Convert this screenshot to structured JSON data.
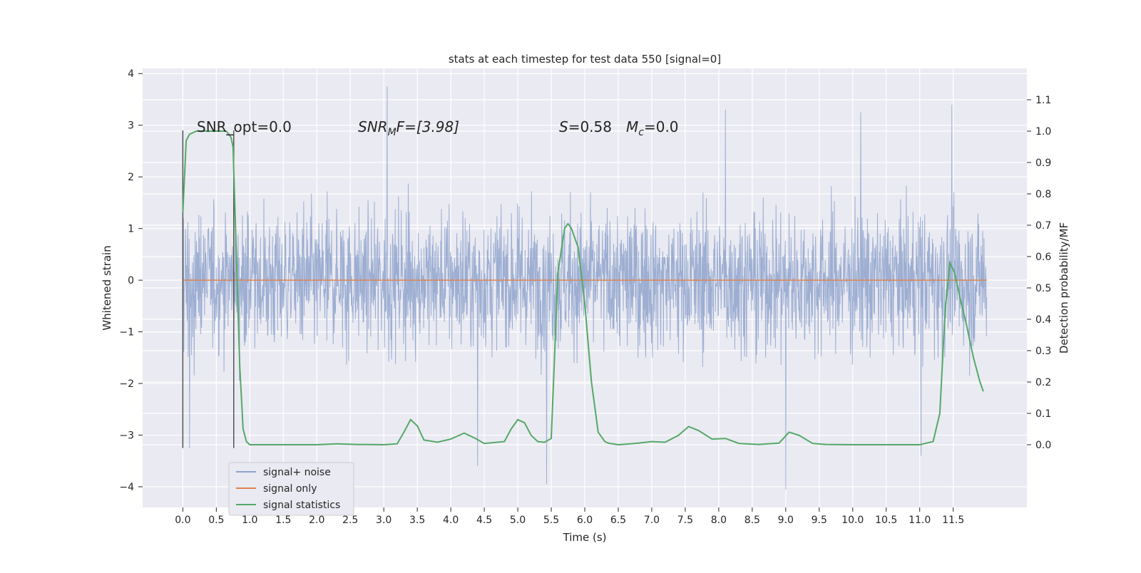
{
  "chart_data": {
    "type": "line",
    "title": "stats at each timestep for test data 550 [signal=0]",
    "xlabel": "Time (s)",
    "ylabel_left": "Whitened strain",
    "ylabel_right": "Detection probability/MF",
    "xlim": [
      -0.6,
      12.6
    ],
    "ylim_left": [
      -4.4,
      4.1
    ],
    "ylim_right": [
      -0.2,
      1.2
    ],
    "x_ticks": [
      "0.0",
      "0.5",
      "1.0",
      "1.5",
      "2.0",
      "2.5",
      "3.0",
      "3.5",
      "4.0",
      "4.5",
      "5.0",
      "5.5",
      "6.0",
      "6.5",
      "7.0",
      "7.5",
      "8.0",
      "8.5",
      "9.0",
      "9.5",
      "10.0",
      "10.5",
      "11.0",
      "11.5"
    ],
    "y_ticks_left": [
      "4",
      "3",
      "2",
      "1",
      "0",
      "−1",
      "−2",
      "−3",
      "−4"
    ],
    "y_ticks_right": [
      "1.1",
      "1.0",
      "0.9",
      "0.8",
      "0.7",
      "0.6",
      "0.5",
      "0.4",
      "0.3",
      "0.2",
      "0.1",
      "0.0"
    ],
    "grid": true,
    "legend_position": "lower-left",
    "annotations": {
      "snr_opt": "SNR_opt=0.0",
      "snr_mf_prefix": "SNR",
      "snr_mf_sub": "M",
      "snr_mf_suffix": "F=[3.98]",
      "s_label": "S",
      "s_value": "=0.58",
      "mc_label": "M",
      "mc_sub": "c",
      "mc_value": "=0.0"
    },
    "vertical_lines_x": [
      0.0,
      0.76
    ],
    "series": [
      {
        "name": "signal+ noise",
        "axis": "left",
        "color": "#8fa3cc",
        "description_style": "dense noise band",
        "x_range": [
          0.0,
          12.0
        ],
        "band_typical": [
          -1.3,
          1.7
        ],
        "notable_points": [
          {
            "x": 3.05,
            "y": 3.75
          },
          {
            "x": 5.43,
            "y": -3.95
          },
          {
            "x": 4.4,
            "y": -3.6
          },
          {
            "x": 9.0,
            "y": -4.05
          },
          {
            "x": 11.02,
            "y": -3.4
          },
          {
            "x": 8.1,
            "y": 3.3
          },
          {
            "x": 10.12,
            "y": 3.25
          },
          {
            "x": 11.48,
            "y": 3.4
          },
          {
            "x": 0.1,
            "y": -3.25
          }
        ]
      },
      {
        "name": "signal only",
        "axis": "left",
        "color": "#dd8452",
        "x": [
          0.0,
          12.0
        ],
        "y": [
          0.0,
          0.0
        ]
      },
      {
        "name": "signal statistics",
        "axis": "right",
        "color": "#55a868",
        "x": [
          0.0,
          0.05,
          0.1,
          0.2,
          0.3,
          0.5,
          0.65,
          0.72,
          0.75,
          0.8,
          0.85,
          0.9,
          0.95,
          1.0,
          1.2,
          1.5,
          2.0,
          2.3,
          2.6,
          3.0,
          3.2,
          3.3,
          3.4,
          3.5,
          3.6,
          3.8,
          4.0,
          4.2,
          4.35,
          4.5,
          4.8,
          4.9,
          5.0,
          5.1,
          5.2,
          5.3,
          5.4,
          5.5,
          5.6,
          5.7,
          5.75,
          5.8,
          5.9,
          6.0,
          6.1,
          6.2,
          6.3,
          6.35,
          6.5,
          6.8,
          7.0,
          7.2,
          7.4,
          7.55,
          7.7,
          7.9,
          8.1,
          8.3,
          8.6,
          8.9,
          9.05,
          9.2,
          9.4,
          9.6,
          10.0,
          10.5,
          11.0,
          11.2,
          11.3,
          11.38,
          11.45,
          11.52,
          11.6,
          11.7,
          11.8,
          11.9,
          11.95
        ],
        "y": [
          0.74,
          0.97,
          0.99,
          1.0,
          1.0,
          1.0,
          1.0,
          0.98,
          0.95,
          0.6,
          0.25,
          0.05,
          0.01,
          0.0,
          0.0,
          0.0,
          0.0,
          0.003,
          0.001,
          0.0,
          0.003,
          0.04,
          0.08,
          0.06,
          0.015,
          0.008,
          0.018,
          0.037,
          0.022,
          0.004,
          0.01,
          0.05,
          0.08,
          0.07,
          0.03,
          0.01,
          0.008,
          0.02,
          0.55,
          0.69,
          0.705,
          0.69,
          0.63,
          0.45,
          0.2,
          0.04,
          0.01,
          0.005,
          0.0,
          0.005,
          0.01,
          0.008,
          0.03,
          0.058,
          0.045,
          0.018,
          0.02,
          0.004,
          0.001,
          0.005,
          0.04,
          0.03,
          0.004,
          0.001,
          0.0,
          0.0,
          0.0,
          0.01,
          0.1,
          0.43,
          0.58,
          0.55,
          0.47,
          0.38,
          0.28,
          0.2,
          0.17
        ]
      }
    ]
  },
  "legend": {
    "items": [
      {
        "label": "signal+ noise",
        "color": "#8fa3cc"
      },
      {
        "label": "signal only",
        "color": "#dd8452"
      },
      {
        "label": "signal statistics",
        "color": "#55a868"
      }
    ]
  }
}
